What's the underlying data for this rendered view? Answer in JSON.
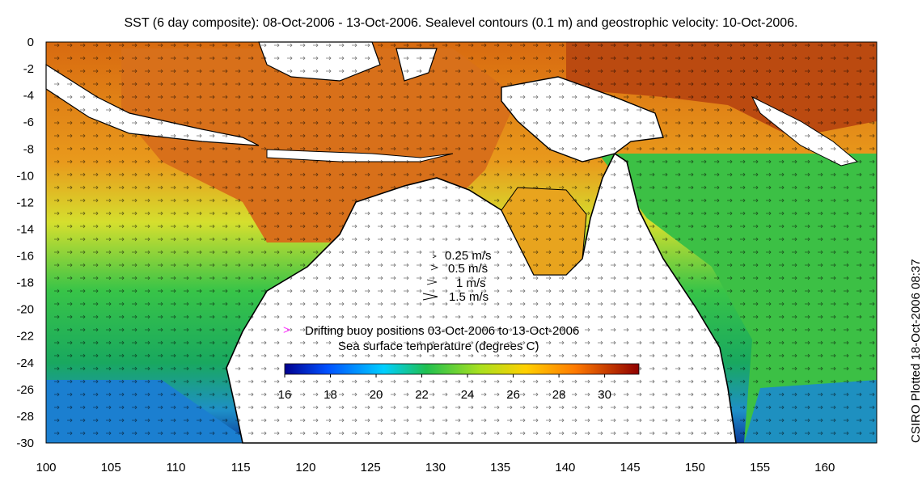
{
  "title": "SST (6 day composite): 08-Oct-2006 - 13-Oct-2006. Sealevel contours (0.1 m) and geostrophic velocity: 10-Oct-2006.",
  "credit": "CSIRO Plotted 18-Oct-2006 08:37",
  "velocity_legend": [
    "0.25 m/s",
    "0.5 m/s",
    "1 m/s",
    "1.5 m/s"
  ],
  "buoy_legend": "Drifting buoy positions 03-Oct-2006 to 13-Oct-2006",
  "buoy_marker": ">",
  "colorbar": {
    "title": "Sea surface temperature (degrees C)",
    "range": [
      16,
      31.5
    ],
    "ticks": [
      "16",
      "18",
      "20",
      "22",
      "24",
      "26",
      "28",
      "30"
    ]
  },
  "axes": {
    "x_ticks": [
      "100",
      "105",
      "110",
      "115",
      "120",
      "125",
      "130",
      "135",
      "140",
      "145",
      "150",
      "155",
      "160"
    ],
    "y_ticks": [
      "0",
      "-2",
      "-4",
      "-6",
      "-8",
      "-10",
      "-12",
      "-14",
      "-16",
      "-18",
      "-20",
      "-22",
      "-24",
      "-26",
      "-28",
      "-30"
    ],
    "lon_range": [
      100,
      164
    ],
    "lat_range": [
      -30,
      0
    ]
  },
  "colors": {
    "cold": "#00008f",
    "warm": "#8f0000",
    "land": "#ffffff",
    "coast": "#000000",
    "buoy": "#ff33ff"
  }
}
